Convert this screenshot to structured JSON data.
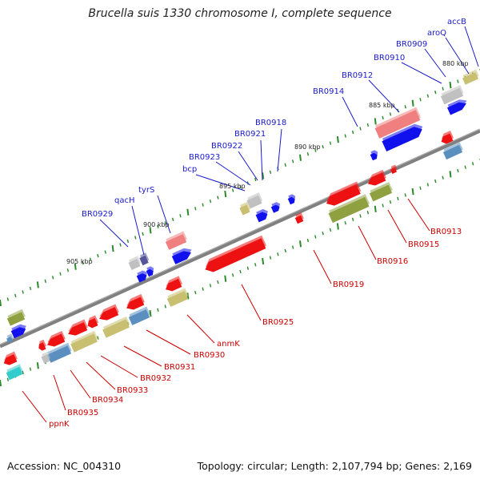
{
  "title": "Brucella suis 1330 chromosome I, complete sequence",
  "accession": "Accession: NC_004310",
  "topology": "Topology: circular; Length: 2,107,794 bp; Genes: 2,169",
  "scale_labels": [
    "880 kbp",
    "885 kbp",
    "890 kbp",
    "895 kbp",
    "900 kbp",
    "905 kbp"
  ],
  "genes_top": [
    "accB",
    "aroQ",
    "BR0909",
    "BR0910",
    "BR0912",
    "BR0914",
    "BR0918",
    "BR0921",
    "BR0922",
    "BR0923",
    "bcp",
    "tyrS",
    "qacH",
    "BR0929"
  ],
  "genes_bottom": [
    "BR0913",
    "BR0915",
    "BR0916",
    "BR0919",
    "BR0925",
    "anmK",
    "BR0930",
    "BR0931",
    "BR0932",
    "BR0933",
    "BR0934",
    "BR0935",
    "ppnK"
  ],
  "colors": {
    "label_top": "#1a1acc",
    "label_bottom": "#cc0000",
    "backbone": "#808080",
    "red": "#ee1111",
    "blue": "#1111ee",
    "olive": "#8fa040",
    "khaki": "#c8c070",
    "grey": "#c0c0c0",
    "steel": "#5b8fc0",
    "pink": "#f08080",
    "teal": "#33cccc",
    "tick": "#2a8a2a"
  }
}
